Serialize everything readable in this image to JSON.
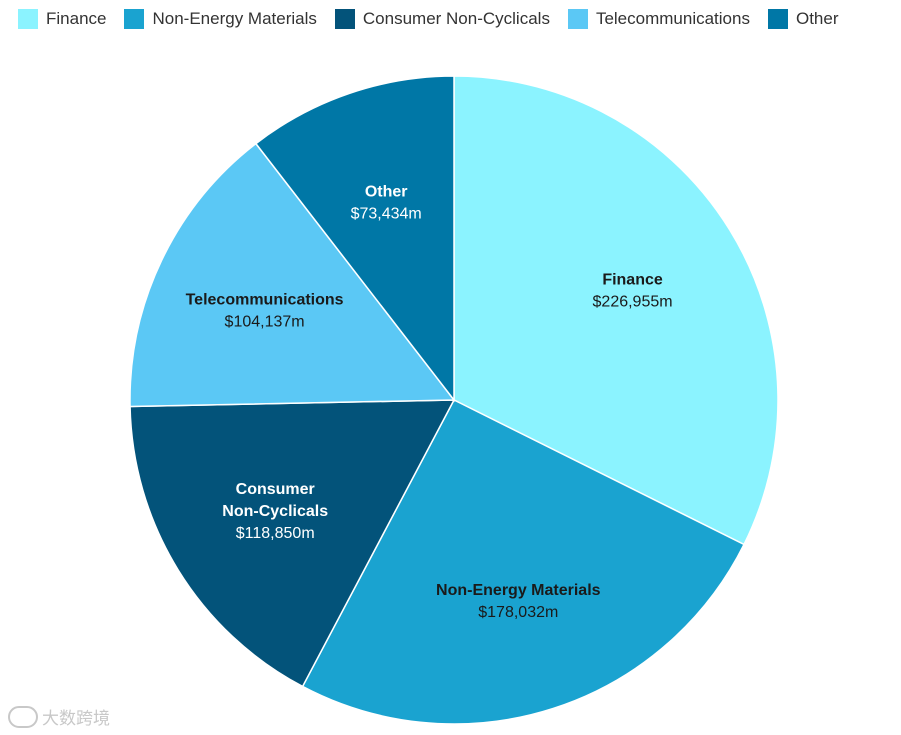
{
  "chart_data": {
    "type": "pie",
    "unit_prefix": "$",
    "unit_suffix": "m",
    "slices": [
      {
        "name": "Finance",
        "value": 226955,
        "value_label": "$226,955m",
        "label_lines": [
          "Finance"
        ],
        "color": "#8BF3FF",
        "text_color": "#1a1a1a"
      },
      {
        "name": "Non-Energy Materials",
        "value": 178032,
        "value_label": "$178,032m",
        "label_lines": [
          "Non-Energy Materials"
        ],
        "color": "#1AA3D0",
        "text_color": "#1a1a1a"
      },
      {
        "name": "Consumer Non-Cyclicals",
        "value": 118850,
        "value_label": "$118,850m",
        "label_lines": [
          "Consumer",
          "Non-Cyclicals"
        ],
        "color": "#03537A",
        "text_color": "#ffffff"
      },
      {
        "name": "Telecommunications",
        "value": 104137,
        "value_label": "$104,137m",
        "label_lines": [
          "Telecommunications"
        ],
        "color": "#5BC8F5",
        "text_color": "#1a1a1a"
      },
      {
        "name": "Other",
        "value": 73434,
        "value_label": "$73,434m",
        "label_lines": [
          "Other"
        ],
        "color": "#0077A6",
        "text_color": "#ffffff"
      }
    ],
    "legend_position": "top-left",
    "start_angle_deg": 0,
    "direction": "clockwise"
  },
  "legend": {
    "items": [
      {
        "label": "Finance",
        "color": "#8BF3FF"
      },
      {
        "label": "Non-Energy Materials",
        "color": "#1AA3D0"
      },
      {
        "label": "Consumer Non-Cyclicals",
        "color": "#03537A"
      },
      {
        "label": "Telecommunications",
        "color": "#5BC8F5"
      },
      {
        "label": "Other",
        "color": "#0077A6"
      }
    ]
  },
  "watermark": {
    "text": "大数跨境"
  }
}
